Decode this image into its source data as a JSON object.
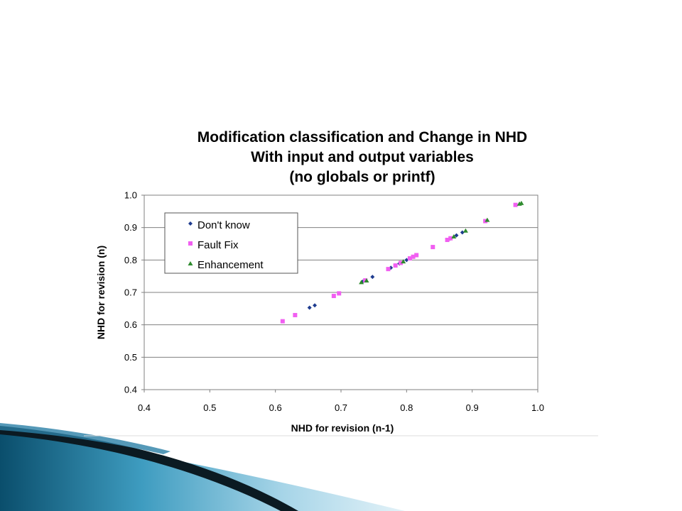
{
  "chart_data": {
    "type": "scatter",
    "title": [
      "Modification classification and Change in NHD",
      "With input and output variables",
      "(no globals or printf)"
    ],
    "xlabel": "NHD for revision (n-1)",
    "ylabel": "NHD for revision (n)",
    "xlim": [
      0.4,
      1.0
    ],
    "ylim": [
      0.4,
      1.0
    ],
    "x_ticks": [
      "0.4",
      "0.5",
      "0.6",
      "0.7",
      "0.8",
      "0.9",
      "1.0"
    ],
    "y_ticks": [
      "0.4",
      "0.5",
      "0.6",
      "0.7",
      "0.8",
      "0.9",
      "1.0"
    ],
    "grid": "horizontal",
    "legend_position": "top-left",
    "series": [
      {
        "name": "Don't know",
        "color": "#1f3c8f",
        "marker": "diamond",
        "points": [
          [
            0.652,
            0.653
          ],
          [
            0.66,
            0.66
          ],
          [
            0.733,
            0.733
          ],
          [
            0.748,
            0.748
          ],
          [
            0.776,
            0.776
          ],
          [
            0.789,
            0.789
          ],
          [
            0.8,
            0.8
          ],
          [
            0.866,
            0.866
          ],
          [
            0.876,
            0.876
          ],
          [
            0.885,
            0.885
          ]
        ]
      },
      {
        "name": "Fault Fix",
        "color": "#f15ff1",
        "marker": "square",
        "points": [
          [
            0.611,
            0.611
          ],
          [
            0.63,
            0.63
          ],
          [
            0.689,
            0.689
          ],
          [
            0.697,
            0.697
          ],
          [
            0.737,
            0.737
          ],
          [
            0.772,
            0.772
          ],
          [
            0.783,
            0.783
          ],
          [
            0.791,
            0.791
          ],
          [
            0.805,
            0.805
          ],
          [
            0.81,
            0.81
          ],
          [
            0.815,
            0.815
          ],
          [
            0.84,
            0.84
          ],
          [
            0.862,
            0.862
          ],
          [
            0.867,
            0.867
          ],
          [
            0.92,
            0.92
          ],
          [
            0.966,
            0.97
          ]
        ]
      },
      {
        "name": "Enhancement",
        "color": "#2e8b2e",
        "marker": "triangle",
        "points": [
          [
            0.731,
            0.731
          ],
          [
            0.739,
            0.736
          ],
          [
            0.795,
            0.795
          ],
          [
            0.872,
            0.872
          ],
          [
            0.89,
            0.89
          ],
          [
            0.923,
            0.923
          ],
          [
            0.972,
            0.973
          ],
          [
            0.975,
            0.975
          ]
        ]
      }
    ]
  }
}
